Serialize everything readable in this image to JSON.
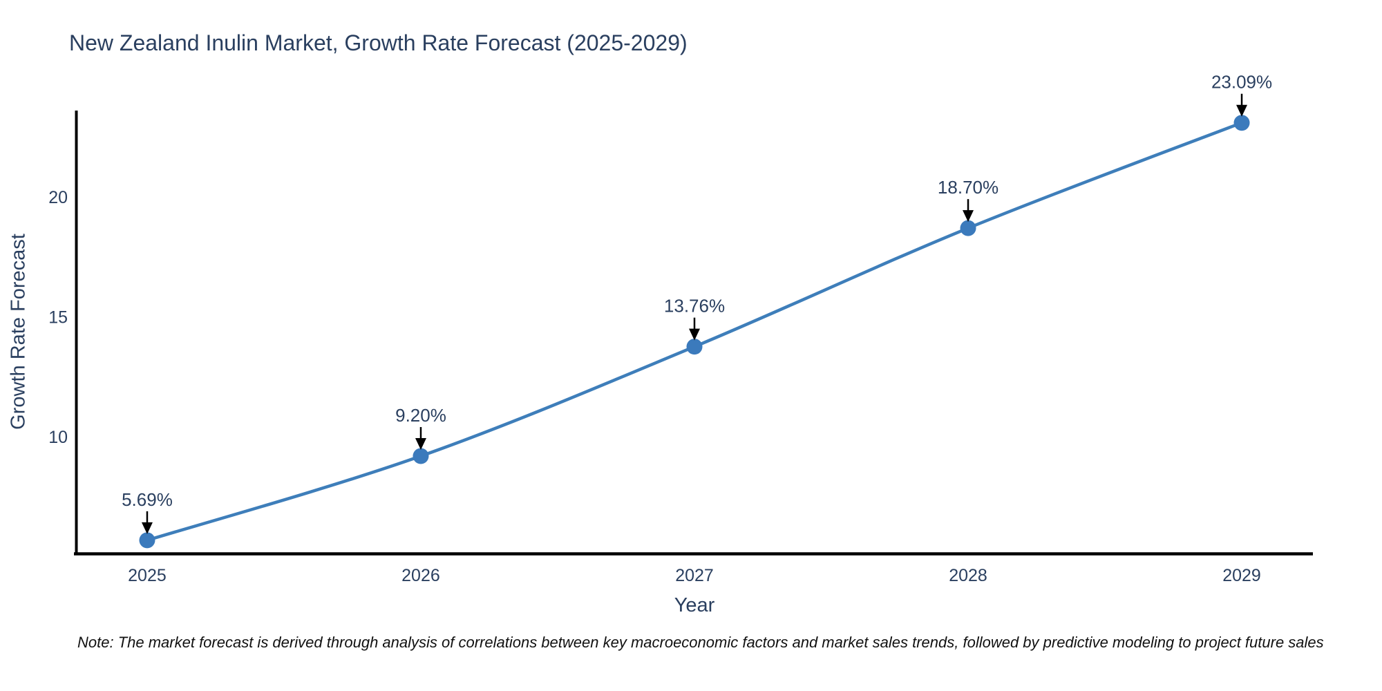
{
  "chart_data": {
    "type": "line",
    "title": "New Zealand Inulin Market, Growth Rate Forecast (2025-2029)",
    "xlabel": "Year",
    "ylabel": "Growth Rate Forecast",
    "x": [
      2025,
      2026,
      2027,
      2028,
      2029
    ],
    "y": [
      5.69,
      9.2,
      13.76,
      18.7,
      23.09
    ],
    "point_labels": [
      "5.69%",
      "9.20%",
      "13.76%",
      "18.70%",
      "23.09%"
    ],
    "series_name": "Growth Rate Forecast",
    "xticks": [
      2025,
      2026,
      2027,
      2028,
      2029
    ],
    "yticks": [
      10,
      15,
      20
    ],
    "xlim": [
      2024.74,
      2029.26
    ],
    "ylim": [
      5.14,
      23.6
    ],
    "grid": false,
    "legend": false,
    "line_shape": "spline",
    "note": "Note: The market forecast is derived through analysis of correlations between key macroeconomic factors and market sales trends, followed by predictive modeling to project future sales",
    "colors": {
      "line": "#3e7eba",
      "marker": "#3b7abc",
      "axis": "#000000",
      "text": "#2a3f5f",
      "annotation_arrow": "#000000",
      "background": "#ffffff"
    }
  }
}
